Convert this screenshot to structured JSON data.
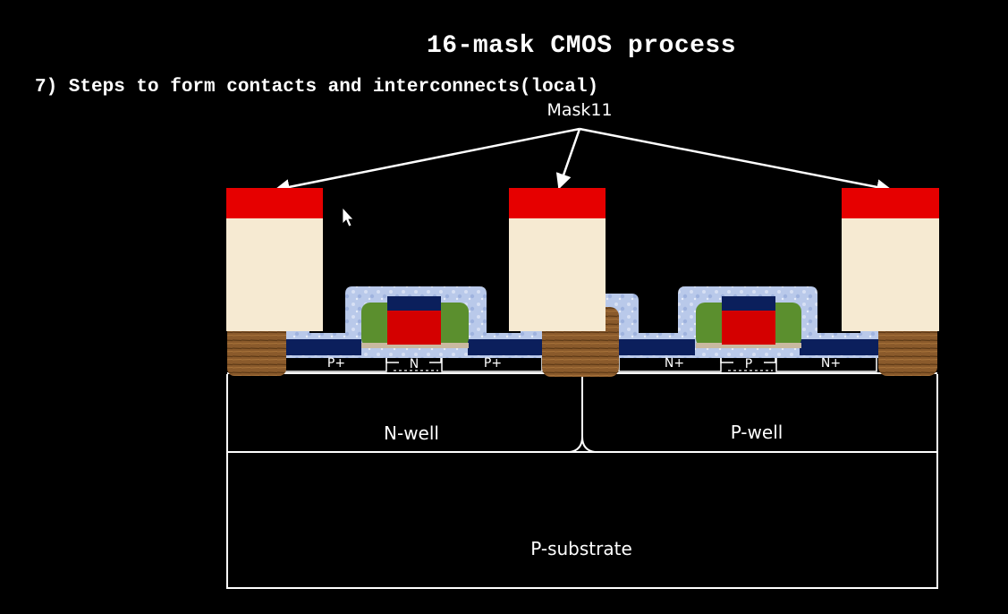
{
  "title": "16-mask CMOS process",
  "subtitle": "7) Steps to form contacts and interconnects(local)",
  "diagram": {
    "mask_label": "Mask11",
    "regions": {
      "n_well": "N-well",
      "p_well": "P-well",
      "p_substrate": "P-substrate"
    },
    "diffusions": {
      "pplus_left": "P+",
      "n_channel": "N",
      "pplus_right": "P+",
      "nplus_left": "N+",
      "p_channel": "P",
      "nplus_right": "N+"
    }
  },
  "colors": {
    "background": "#000000",
    "mask": "#e60000",
    "photoresist": "#f6ead2",
    "oxide": "#b7c8e8",
    "field_oxide": "#8a5a2b",
    "diffusion": "#0b1f5c",
    "spacer": "#5b8f2e",
    "gate": "#d40000",
    "outline": "#ffffff"
  }
}
